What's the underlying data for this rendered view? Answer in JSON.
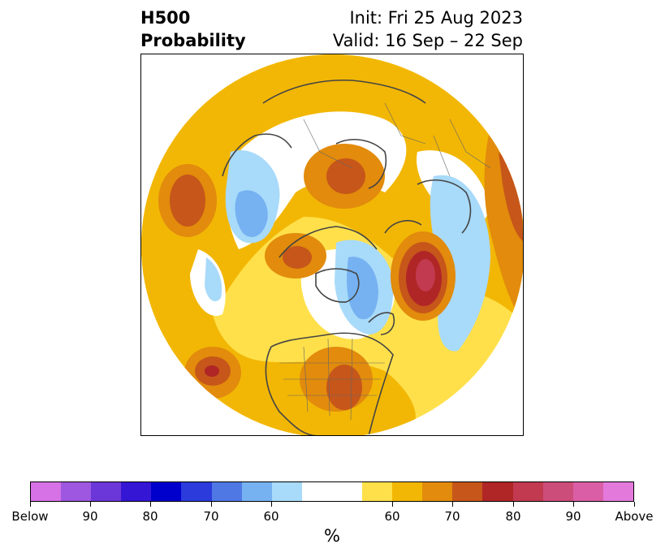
{
  "header": {
    "title_line1": "H500",
    "title_line2": "Probability",
    "init_text": "Init: Fri 25 Aug 2023",
    "valid_text": "Valid: 16 Sep – 22 Sep"
  },
  "colorbar": {
    "unit": "%",
    "colors": [
      "#d771e6",
      "#9d57e0",
      "#6c37d9",
      "#3516d4",
      "#0000cc",
      "#2b3bdc",
      "#4f78e5",
      "#76b2f1",
      "#a8dafa",
      "#ffffff",
      "#ffe04a",
      "#f2b705",
      "#e28b0c",
      "#c6561a",
      "#b02626",
      "#c23a50",
      "#cd4d7a",
      "#da5ea6",
      "#e479dc"
    ],
    "labels": [
      "Below",
      "90",
      "80",
      "70",
      "60",
      "60",
      "70",
      "80",
      "90",
      "Above"
    ]
  },
  "map": {
    "ocean_color": "#ffffff",
    "coast_color": "#444444",
    "anomalies": [
      {
        "type": "above",
        "level": "60",
        "color": "#ffe04a"
      },
      {
        "type": "above",
        "level": "70",
        "color": "#f2b705"
      },
      {
        "type": "above",
        "level": "80",
        "color": "#e28b0c"
      },
      {
        "type": "below",
        "level": "60",
        "color": "#a8dafa"
      },
      {
        "type": "below",
        "level": "70",
        "color": "#76b2f1"
      }
    ]
  }
}
